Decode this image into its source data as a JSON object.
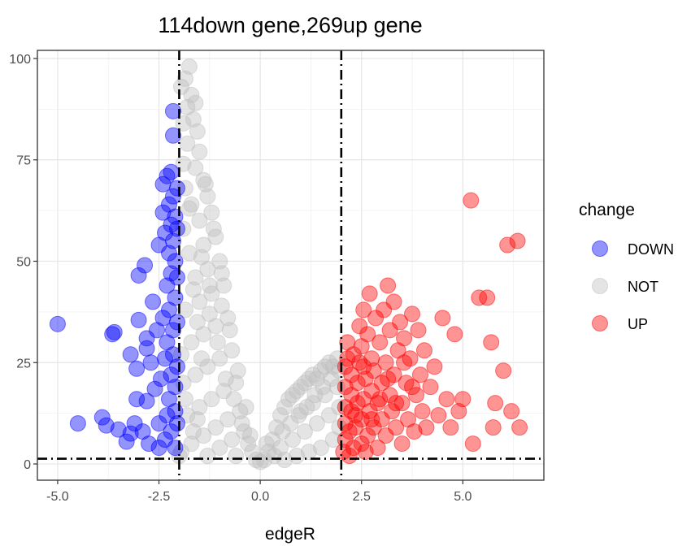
{
  "chart_data": {
    "type": "scatter",
    "title": "114down gene,269up gene",
    "xlabel": "edgeR",
    "ylabel": "",
    "xlim": [
      -5.5,
      7.0
    ],
    "ylim": [
      -4,
      102
    ],
    "x_ticks": [
      -5.0,
      -2.5,
      0.0,
      2.5,
      5.0
    ],
    "x_tick_labels": [
      "-5.0",
      "-2.5",
      "0.0",
      "2.5",
      "5.0"
    ],
    "y_ticks": [
      0,
      25,
      50,
      75,
      100
    ],
    "y_tick_labels": [
      "0",
      "25",
      "50",
      "75",
      "100"
    ],
    "grid": true,
    "thresholds": {
      "logFC": [
        -2,
        2
      ],
      "neg_log10_p": 1.3
    },
    "legend": {
      "title": "change",
      "position": "right",
      "entries": [
        {
          "label": "DOWN",
          "color": "#0000ff"
        },
        {
          "label": "NOT",
          "color": "#bebebe"
        },
        {
          "label": "UP",
          "color": "#ff0000"
        }
      ]
    },
    "series": [
      {
        "name": "DOWN",
        "color": "#0000ff",
        "points": [
          [
            -5.0,
            34.5
          ],
          [
            -4.5,
            10
          ],
          [
            -3.9,
            11.5
          ],
          [
            -3.8,
            9.5
          ],
          [
            -3.65,
            32
          ],
          [
            -3.6,
            32.5
          ],
          [
            -3.5,
            8.5
          ],
          [
            -3.3,
            5.5
          ],
          [
            -3.2,
            7.5
          ],
          [
            -3.2,
            27
          ],
          [
            -3.1,
            10
          ],
          [
            -3.05,
            16
          ],
          [
            -3.05,
            23.5
          ],
          [
            -3.0,
            35.5
          ],
          [
            -3.0,
            46.5
          ],
          [
            -2.9,
            8
          ],
          [
            -2.85,
            49
          ],
          [
            -2.8,
            28.5
          ],
          [
            -2.8,
            31
          ],
          [
            -2.8,
            15.5
          ],
          [
            -2.75,
            5
          ],
          [
            -2.7,
            25
          ],
          [
            -2.65,
            40
          ],
          [
            -2.6,
            18.5
          ],
          [
            -2.55,
            33
          ],
          [
            -2.5,
            54
          ],
          [
            -2.5,
            10
          ],
          [
            -2.5,
            4
          ],
          [
            -2.45,
            21
          ],
          [
            -2.4,
            69
          ],
          [
            -2.4,
            62
          ],
          [
            -2.4,
            36
          ],
          [
            -2.35,
            26
          ],
          [
            -2.35,
            6
          ],
          [
            -2.35,
            57
          ],
          [
            -2.3,
            71
          ],
          [
            -2.3,
            44
          ],
          [
            -2.3,
            12
          ],
          [
            -2.3,
            30
          ],
          [
            -2.25,
            52
          ],
          [
            -2.25,
            64
          ],
          [
            -2.25,
            38
          ],
          [
            -2.25,
            16
          ],
          [
            -2.2,
            59
          ],
          [
            -2.2,
            72
          ],
          [
            -2.2,
            47
          ],
          [
            -2.2,
            22
          ],
          [
            -2.2,
            8
          ],
          [
            -2.15,
            87
          ],
          [
            -2.15,
            81
          ],
          [
            -2.15,
            66
          ],
          [
            -2.15,
            55
          ],
          [
            -2.15,
            33
          ],
          [
            -2.15,
            27
          ],
          [
            -2.1,
            61
          ],
          [
            -2.1,
            50
          ],
          [
            -2.1,
            41
          ],
          [
            -2.1,
            19
          ],
          [
            -2.1,
            13
          ],
          [
            -2.1,
            4
          ],
          [
            -2.05,
            68
          ],
          [
            -2.05,
            58
          ],
          [
            -2.05,
            46
          ],
          [
            -2.05,
            35
          ],
          [
            -2.05,
            24
          ],
          [
            -2.05,
            10
          ]
        ]
      },
      {
        "name": "NOT",
        "color": "#bebebe",
        "points": [
          [
            -1.75,
            98
          ],
          [
            -1.85,
            95
          ],
          [
            -1.95,
            93
          ],
          [
            -1.7,
            91
          ],
          [
            -1.6,
            89
          ],
          [
            -1.65,
            85
          ],
          [
            -1.9,
            84
          ],
          [
            -1.55,
            82
          ],
          [
            -1.8,
            79
          ],
          [
            -1.5,
            77
          ],
          [
            -1.9,
            74
          ],
          [
            -1.6,
            73
          ],
          [
            -1.4,
            70
          ],
          [
            -1.85,
            68
          ],
          [
            -1.3,
            66
          ],
          [
            -1.7,
            64
          ],
          [
            -1.2,
            62
          ],
          [
            -1.5,
            60
          ],
          [
            -1.9,
            58
          ],
          [
            -1.1,
            56
          ],
          [
            -1.4,
            54
          ],
          [
            -1.75,
            52
          ],
          [
            -1.0,
            50
          ],
          [
            -1.3,
            48
          ],
          [
            -1.6,
            46
          ],
          [
            -0.9,
            44
          ],
          [
            -1.2,
            42
          ],
          [
            -1.5,
            40
          ],
          [
            -1.85,
            38
          ],
          [
            -0.8,
            36
          ],
          [
            -1.1,
            34
          ],
          [
            -1.4,
            32
          ],
          [
            -1.7,
            30
          ],
          [
            -0.7,
            28
          ],
          [
            -1.0,
            26
          ],
          [
            -1.3,
            24
          ],
          [
            -1.6,
            22
          ],
          [
            -1.9,
            20
          ],
          [
            -0.6,
            20
          ],
          [
            -0.9,
            18
          ],
          [
            -1.2,
            16
          ],
          [
            -1.5,
            14
          ],
          [
            -1.8,
            12
          ],
          [
            -0.5,
            13
          ],
          [
            -0.8,
            11
          ],
          [
            -1.1,
            9
          ],
          [
            -1.4,
            7
          ],
          [
            -1.7,
            5
          ],
          [
            -1.95,
            3
          ],
          [
            -0.4,
            8
          ],
          [
            -0.7,
            6
          ],
          [
            -1.0,
            4
          ],
          [
            -1.3,
            2
          ],
          [
            -0.3,
            5
          ],
          [
            -0.6,
            2
          ],
          [
            -0.2,
            3
          ],
          [
            -0.1,
            1
          ],
          [
            0.0,
            0.5
          ],
          [
            0.1,
            1
          ],
          [
            0.2,
            3
          ],
          [
            0.3,
            6
          ],
          [
            0.4,
            9
          ],
          [
            0.5,
            12
          ],
          [
            0.6,
            14
          ],
          [
            0.7,
            16
          ],
          [
            0.8,
            17
          ],
          [
            0.9,
            18
          ],
          [
            1.0,
            19
          ],
          [
            1.1,
            20
          ],
          [
            1.2,
            21
          ],
          [
            1.3,
            22
          ],
          [
            1.4,
            21
          ],
          [
            1.5,
            23
          ],
          [
            1.6,
            24
          ],
          [
            1.7,
            25
          ],
          [
            1.8,
            24
          ],
          [
            1.9,
            26
          ],
          [
            0.5,
            4
          ],
          [
            0.8,
            6
          ],
          [
            1.1,
            8
          ],
          [
            1.4,
            10
          ],
          [
            1.7,
            12
          ],
          [
            1.95,
            14
          ],
          [
            0.6,
            1
          ],
          [
            0.9,
            2
          ],
          [
            1.2,
            3
          ],
          [
            1.5,
            4
          ],
          [
            1.8,
            6
          ],
          [
            1.95,
            9
          ],
          [
            1.0,
            13
          ],
          [
            1.3,
            15
          ],
          [
            1.6,
            17
          ],
          [
            1.9,
            19
          ],
          [
            -1.8,
            88
          ],
          [
            -1.35,
            69
          ],
          [
            -1.15,
            58
          ],
          [
            -0.95,
            47
          ],
          [
            -0.75,
            33
          ],
          [
            -0.55,
            23
          ],
          [
            -0.35,
            14
          ],
          [
            -2.0,
            2
          ],
          [
            -1.55,
            11
          ],
          [
            -1.65,
            43
          ],
          [
            -1.45,
            26
          ],
          [
            -1.25,
            37
          ],
          [
            -1.05,
            30
          ],
          [
            -0.85,
            21
          ],
          [
            -0.65,
            16
          ],
          [
            -0.45,
            10
          ],
          [
            -0.25,
            7
          ],
          [
            0.15,
            5
          ],
          [
            0.35,
            2
          ],
          [
            0.55,
            8
          ],
          [
            0.75,
            10
          ],
          [
            0.95,
            12
          ],
          [
            1.15,
            14
          ],
          [
            1.35,
            17
          ],
          [
            1.55,
            19
          ],
          [
            1.75,
            21
          ],
          [
            1.95,
            23
          ],
          [
            -1.75,
            63
          ],
          [
            -1.45,
            51
          ],
          [
            -1.25,
            44
          ],
          [
            -0.95,
            39
          ],
          [
            -1.55,
            35
          ],
          [
            -1.95,
            27
          ],
          [
            -1.85,
            16
          ],
          [
            -1.65,
            8
          ]
        ]
      },
      {
        "name": "UP",
        "color": "#ff0000",
        "points": [
          [
            2.05,
            3
          ],
          [
            2.1,
            6
          ],
          [
            2.1,
            10
          ],
          [
            2.1,
            14
          ],
          [
            2.1,
            19
          ],
          [
            2.1,
            24
          ],
          [
            2.15,
            30
          ],
          [
            2.2,
            2
          ],
          [
            2.2,
            8
          ],
          [
            2.25,
            13
          ],
          [
            2.25,
            17
          ],
          [
            2.25,
            22
          ],
          [
            2.3,
            27
          ],
          [
            2.3,
            4
          ],
          [
            2.35,
            9
          ],
          [
            2.4,
            15
          ],
          [
            2.4,
            20
          ],
          [
            2.45,
            34
          ],
          [
            2.45,
            25
          ],
          [
            2.5,
            5
          ],
          [
            2.5,
            11
          ],
          [
            2.5,
            29
          ],
          [
            2.55,
            16
          ],
          [
            2.55,
            38
          ],
          [
            2.6,
            21
          ],
          [
            2.6,
            3
          ],
          [
            2.65,
            7
          ],
          [
            2.65,
            32
          ],
          [
            2.7,
            42
          ],
          [
            2.7,
            13
          ],
          [
            2.75,
            18
          ],
          [
            2.75,
            26
          ],
          [
            2.8,
            23
          ],
          [
            2.8,
            9
          ],
          [
            2.85,
            36
          ],
          [
            2.9,
            15
          ],
          [
            2.9,
            4
          ],
          [
            2.95,
            30
          ],
          [
            3.0,
            20
          ],
          [
            3.0,
            11
          ],
          [
            3.05,
            38
          ],
          [
            3.1,
            25
          ],
          [
            3.1,
            7
          ],
          [
            3.15,
            44
          ],
          [
            3.2,
            17
          ],
          [
            3.2,
            33
          ],
          [
            3.25,
            13
          ],
          [
            3.3,
            40
          ],
          [
            3.3,
            22
          ],
          [
            3.35,
            9
          ],
          [
            3.4,
            28
          ],
          [
            3.45,
            35
          ],
          [
            3.5,
            15
          ],
          [
            3.5,
            5
          ],
          [
            3.55,
            31
          ],
          [
            3.6,
            20
          ],
          [
            3.65,
            11
          ],
          [
            3.7,
            26
          ],
          [
            3.75,
            37
          ],
          [
            3.8,
            8
          ],
          [
            3.85,
            17
          ],
          [
            3.9,
            33
          ],
          [
            3.95,
            22
          ],
          [
            4.0,
            13
          ],
          [
            4.05,
            28
          ],
          [
            4.1,
            9
          ],
          [
            4.2,
            19
          ],
          [
            4.3,
            24
          ],
          [
            4.4,
            12
          ],
          [
            4.5,
            36
          ],
          [
            4.6,
            16
          ],
          [
            4.7,
            9
          ],
          [
            4.8,
            32
          ],
          [
            4.9,
            13
          ],
          [
            5.0,
            16
          ],
          [
            5.2,
            65
          ],
          [
            5.25,
            5
          ],
          [
            5.4,
            41
          ],
          [
            5.6,
            41
          ],
          [
            5.7,
            30
          ],
          [
            5.8,
            15
          ],
          [
            5.75,
            9
          ],
          [
            6.0,
            23
          ],
          [
            6.1,
            54
          ],
          [
            6.2,
            13
          ],
          [
            6.35,
            55
          ],
          [
            6.4,
            9
          ],
          [
            2.15,
            26
          ],
          [
            2.35,
            12
          ],
          [
            2.55,
            24
          ],
          [
            2.75,
            11
          ],
          [
            2.95,
            16
          ],
          [
            3.15,
            21
          ],
          [
            3.35,
            15
          ],
          [
            3.55,
            25
          ],
          [
            3.75,
            19
          ]
        ]
      }
    ]
  }
}
